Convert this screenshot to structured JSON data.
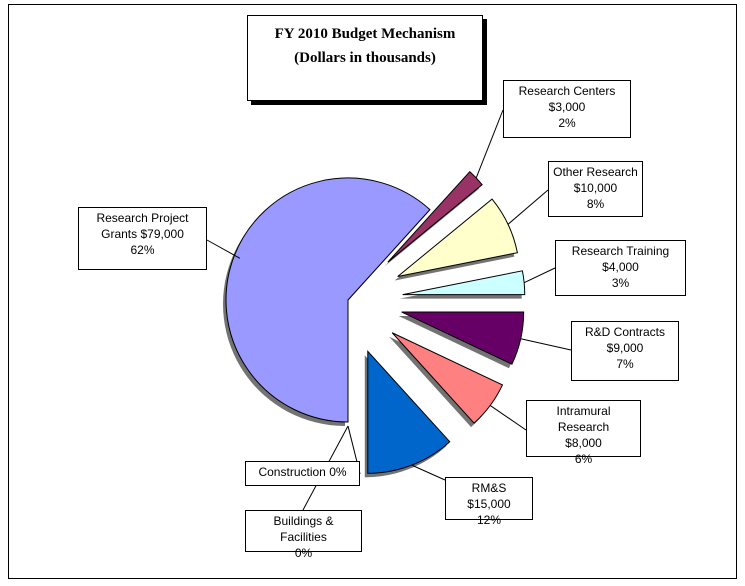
{
  "chart_data": {
    "type": "pie",
    "title": "FY  2010 Budget Mechanism",
    "subtitle": "(Dollars in thousands)",
    "categories": [
      "Research Project Grants",
      "Research Centers",
      "Other Research",
      "Research Training",
      "R&D Contracts",
      "Intramural Research",
      "RM&S",
      "Construction",
      "Buildings & Facilities"
    ],
    "values": [
      79000,
      3000,
      10000,
      4000,
      9000,
      8000,
      15000,
      0,
      0
    ],
    "value_labels": [
      "$79,000",
      "$3,000",
      "$10,000",
      "$4,000",
      "$9,000",
      "$8,000",
      "$15,000",
      null,
      null
    ],
    "percents": [
      62,
      2,
      8,
      3,
      7,
      6,
      12,
      0,
      0
    ],
    "percent_labels": [
      "62%",
      "2%",
      "8%",
      "3%",
      "7%",
      "6%",
      "12%",
      "0%",
      "0%"
    ],
    "colors": [
      "#9999ff",
      "#993366",
      "#ffffcc",
      "#ccffff",
      "#660066",
      "#ff8080",
      "#0066cc",
      "#999999",
      "#999999"
    ]
  }
}
